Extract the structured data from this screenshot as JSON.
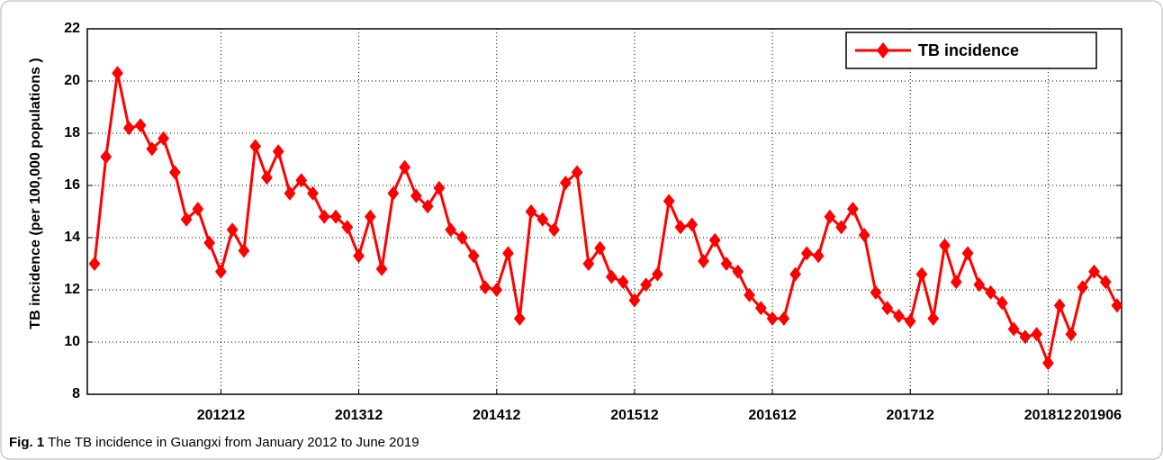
{
  "chart_data": {
    "type": "line",
    "y_label": "TB incidence (per 100,000 populations )",
    "categories": [
      null,
      null,
      null,
      null,
      null,
      null,
      null,
      null,
      null,
      null,
      null,
      "201212",
      null,
      null,
      null,
      null,
      null,
      null,
      null,
      null,
      null,
      null,
      null,
      "201312",
      null,
      null,
      null,
      null,
      null,
      null,
      null,
      null,
      null,
      null,
      null,
      "201412",
      null,
      null,
      null,
      null,
      null,
      null,
      null,
      null,
      null,
      null,
      null,
      "201512",
      null,
      null,
      null,
      null,
      null,
      null,
      null,
      null,
      null,
      null,
      null,
      "201612",
      null,
      null,
      null,
      null,
      null,
      null,
      null,
      null,
      null,
      null,
      null,
      "201712",
      null,
      null,
      null,
      null,
      null,
      null,
      null,
      null,
      null,
      null,
      null,
      "201812",
      null,
      null,
      null,
      null,
      null,
      "201906"
    ],
    "series": [
      {
        "name": "TB incidence",
        "color": "#ff0000",
        "values": [
          13.0,
          17.1,
          20.3,
          18.2,
          18.3,
          17.4,
          17.8,
          16.5,
          14.7,
          15.1,
          13.8,
          12.7,
          14.3,
          13.5,
          17.5,
          16.3,
          17.3,
          15.7,
          16.2,
          15.7,
          14.8,
          14.8,
          14.4,
          13.3,
          14.8,
          12.8,
          15.7,
          16.7,
          15.6,
          15.2,
          15.9,
          14.3,
          14.0,
          13.3,
          12.1,
          12.0,
          13.4,
          10.9,
          15.0,
          14.7,
          14.3,
          16.1,
          16.5,
          13.0,
          13.6,
          12.5,
          12.3,
          11.6,
          12.2,
          12.6,
          15.4,
          14.4,
          14.5,
          13.1,
          13.9,
          13.0,
          12.7,
          11.8,
          11.3,
          10.9,
          10.9,
          12.6,
          13.4,
          13.3,
          14.8,
          14.4,
          15.1,
          14.1,
          11.9,
          11.3,
          11.0,
          10.8,
          12.6,
          10.9,
          13.7,
          12.3,
          13.4,
          12.2,
          11.9,
          11.5,
          10.5,
          10.2,
          10.3,
          9.2,
          11.4,
          10.3,
          12.1,
          12.7,
          12.3,
          11.4
        ]
      }
    ],
    "ylim": [
      8,
      22
    ],
    "yticks": [
      8,
      10,
      12,
      14,
      16,
      18,
      20,
      22
    ],
    "grid": true,
    "legend": "upper right"
  },
  "caption": {
    "label": "Fig. 1",
    "text": "The TB incidence in Guangxi from January 2012 to June 2019"
  }
}
